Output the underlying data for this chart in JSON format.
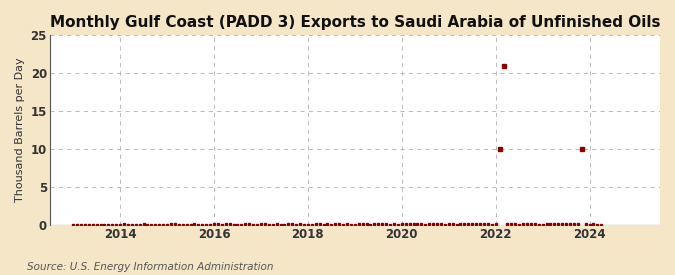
{
  "title": "Monthly Gulf Coast (PADD 3) Exports to Saudi Arabia of Unfinished Oils",
  "ylabel": "Thousand Barrels per Day",
  "source": "Source: U.S. Energy Information Administration",
  "background_color": "#f5e6c8",
  "plot_bg_color": "#ffffff",
  "marker_color": "#8b0000",
  "ylim": [
    0,
    25
  ],
  "yticks": [
    0,
    5,
    10,
    15,
    20,
    25
  ],
  "xlim_start": 2012.5,
  "xlim_end": 2025.5,
  "xticks": [
    2014,
    2016,
    2018,
    2020,
    2022,
    2024
  ],
  "grid_color": "#b0b0b0",
  "title_fontsize": 11,
  "axis_fontsize": 8,
  "tick_fontsize": 8.5,
  "data_points": [
    {
      "date": 2013.0,
      "value": 0
    },
    {
      "date": 2013.083,
      "value": 0
    },
    {
      "date": 2013.167,
      "value": 0
    },
    {
      "date": 2013.25,
      "value": 0
    },
    {
      "date": 2013.333,
      "value": 0
    },
    {
      "date": 2013.417,
      "value": 0
    },
    {
      "date": 2013.5,
      "value": 0
    },
    {
      "date": 2013.583,
      "value": 0
    },
    {
      "date": 2013.667,
      "value": 0
    },
    {
      "date": 2013.75,
      "value": 0
    },
    {
      "date": 2013.833,
      "value": 0
    },
    {
      "date": 2013.917,
      "value": 0
    },
    {
      "date": 2014.0,
      "value": 0
    },
    {
      "date": 2014.083,
      "value": 0.1
    },
    {
      "date": 2014.167,
      "value": 0
    },
    {
      "date": 2014.25,
      "value": 0
    },
    {
      "date": 2014.333,
      "value": 0
    },
    {
      "date": 2014.417,
      "value": 0
    },
    {
      "date": 2014.5,
      "value": 0.1
    },
    {
      "date": 2014.583,
      "value": 0
    },
    {
      "date": 2014.667,
      "value": 0
    },
    {
      "date": 2014.75,
      "value": 0
    },
    {
      "date": 2014.833,
      "value": 0
    },
    {
      "date": 2014.917,
      "value": 0
    },
    {
      "date": 2015.0,
      "value": 0
    },
    {
      "date": 2015.083,
      "value": 0.1
    },
    {
      "date": 2015.167,
      "value": 0.1
    },
    {
      "date": 2015.25,
      "value": 0
    },
    {
      "date": 2015.333,
      "value": 0
    },
    {
      "date": 2015.417,
      "value": 0
    },
    {
      "date": 2015.5,
      "value": 0
    },
    {
      "date": 2015.583,
      "value": 0.1
    },
    {
      "date": 2015.667,
      "value": 0
    },
    {
      "date": 2015.75,
      "value": 0
    },
    {
      "date": 2015.833,
      "value": 0
    },
    {
      "date": 2015.917,
      "value": 0
    },
    {
      "date": 2016.0,
      "value": 0.1
    },
    {
      "date": 2016.083,
      "value": 0.1
    },
    {
      "date": 2016.167,
      "value": 0
    },
    {
      "date": 2016.25,
      "value": 0.1
    },
    {
      "date": 2016.333,
      "value": 0.1
    },
    {
      "date": 2016.417,
      "value": 0
    },
    {
      "date": 2016.5,
      "value": 0
    },
    {
      "date": 2016.583,
      "value": 0
    },
    {
      "date": 2016.667,
      "value": 0.1
    },
    {
      "date": 2016.75,
      "value": 0.1
    },
    {
      "date": 2016.833,
      "value": 0
    },
    {
      "date": 2016.917,
      "value": 0
    },
    {
      "date": 2017.0,
      "value": 0.1
    },
    {
      "date": 2017.083,
      "value": 0.1
    },
    {
      "date": 2017.167,
      "value": 0
    },
    {
      "date": 2017.25,
      "value": 0
    },
    {
      "date": 2017.333,
      "value": 0.1
    },
    {
      "date": 2017.417,
      "value": 0
    },
    {
      "date": 2017.5,
      "value": 0
    },
    {
      "date": 2017.583,
      "value": 0.1
    },
    {
      "date": 2017.667,
      "value": 0.1
    },
    {
      "date": 2017.75,
      "value": 0
    },
    {
      "date": 2017.833,
      "value": 0.1
    },
    {
      "date": 2017.917,
      "value": 0
    },
    {
      "date": 2018.0,
      "value": 0
    },
    {
      "date": 2018.083,
      "value": 0
    },
    {
      "date": 2018.167,
      "value": 0.1
    },
    {
      "date": 2018.25,
      "value": 0.1
    },
    {
      "date": 2018.333,
      "value": 0
    },
    {
      "date": 2018.417,
      "value": 0.1
    },
    {
      "date": 2018.5,
      "value": 0
    },
    {
      "date": 2018.583,
      "value": 0.1
    },
    {
      "date": 2018.667,
      "value": 0.1
    },
    {
      "date": 2018.75,
      "value": 0
    },
    {
      "date": 2018.833,
      "value": 0.1
    },
    {
      "date": 2018.917,
      "value": 0
    },
    {
      "date": 2019.0,
      "value": 0
    },
    {
      "date": 2019.083,
      "value": 0.1
    },
    {
      "date": 2019.167,
      "value": 0.1
    },
    {
      "date": 2019.25,
      "value": 0.1
    },
    {
      "date": 2019.333,
      "value": 0
    },
    {
      "date": 2019.417,
      "value": 0.1
    },
    {
      "date": 2019.5,
      "value": 0.1
    },
    {
      "date": 2019.583,
      "value": 0.1
    },
    {
      "date": 2019.667,
      "value": 0.1
    },
    {
      "date": 2019.75,
      "value": 0
    },
    {
      "date": 2019.833,
      "value": 0.1
    },
    {
      "date": 2019.917,
      "value": 0
    },
    {
      "date": 2020.0,
      "value": 0.1
    },
    {
      "date": 2020.083,
      "value": 0.1
    },
    {
      "date": 2020.167,
      "value": 0.1
    },
    {
      "date": 2020.25,
      "value": 0.1
    },
    {
      "date": 2020.333,
      "value": 0.1
    },
    {
      "date": 2020.417,
      "value": 0.1
    },
    {
      "date": 2020.5,
      "value": 0
    },
    {
      "date": 2020.583,
      "value": 0.1
    },
    {
      "date": 2020.667,
      "value": 0.1
    },
    {
      "date": 2020.75,
      "value": 0.1
    },
    {
      "date": 2020.833,
      "value": 0.1
    },
    {
      "date": 2020.917,
      "value": 0
    },
    {
      "date": 2021.0,
      "value": 0.1
    },
    {
      "date": 2021.083,
      "value": 0.1
    },
    {
      "date": 2021.167,
      "value": 0
    },
    {
      "date": 2021.25,
      "value": 0.1
    },
    {
      "date": 2021.333,
      "value": 0.1
    },
    {
      "date": 2021.417,
      "value": 0.1
    },
    {
      "date": 2021.5,
      "value": 0.1
    },
    {
      "date": 2021.583,
      "value": 0.1
    },
    {
      "date": 2021.667,
      "value": 0.1
    },
    {
      "date": 2021.75,
      "value": 0.1
    },
    {
      "date": 2021.833,
      "value": 0.1
    },
    {
      "date": 2021.917,
      "value": 0
    },
    {
      "date": 2022.0,
      "value": 0.1
    },
    {
      "date": 2022.083,
      "value": 10.0
    },
    {
      "date": 2022.167,
      "value": 21.0
    },
    {
      "date": 2022.25,
      "value": 0.1
    },
    {
      "date": 2022.333,
      "value": 0.1
    },
    {
      "date": 2022.417,
      "value": 0.1
    },
    {
      "date": 2022.5,
      "value": 0
    },
    {
      "date": 2022.583,
      "value": 0.1
    },
    {
      "date": 2022.667,
      "value": 0.1
    },
    {
      "date": 2022.75,
      "value": 0.1
    },
    {
      "date": 2022.833,
      "value": 0.1
    },
    {
      "date": 2022.917,
      "value": 0
    },
    {
      "date": 2023.0,
      "value": 0
    },
    {
      "date": 2023.083,
      "value": 0.1
    },
    {
      "date": 2023.167,
      "value": 0.1
    },
    {
      "date": 2023.25,
      "value": 0.1
    },
    {
      "date": 2023.333,
      "value": 0.1
    },
    {
      "date": 2023.417,
      "value": 0.1
    },
    {
      "date": 2023.5,
      "value": 0.1
    },
    {
      "date": 2023.583,
      "value": 0.1
    },
    {
      "date": 2023.667,
      "value": 0.1
    },
    {
      "date": 2023.75,
      "value": 0.1
    },
    {
      "date": 2023.833,
      "value": 10.0
    },
    {
      "date": 2023.917,
      "value": 0.1
    },
    {
      "date": 2024.0,
      "value": 0
    },
    {
      "date": 2024.083,
      "value": 0.1
    },
    {
      "date": 2024.167,
      "value": 0
    },
    {
      "date": 2024.25,
      "value": 0
    }
  ]
}
